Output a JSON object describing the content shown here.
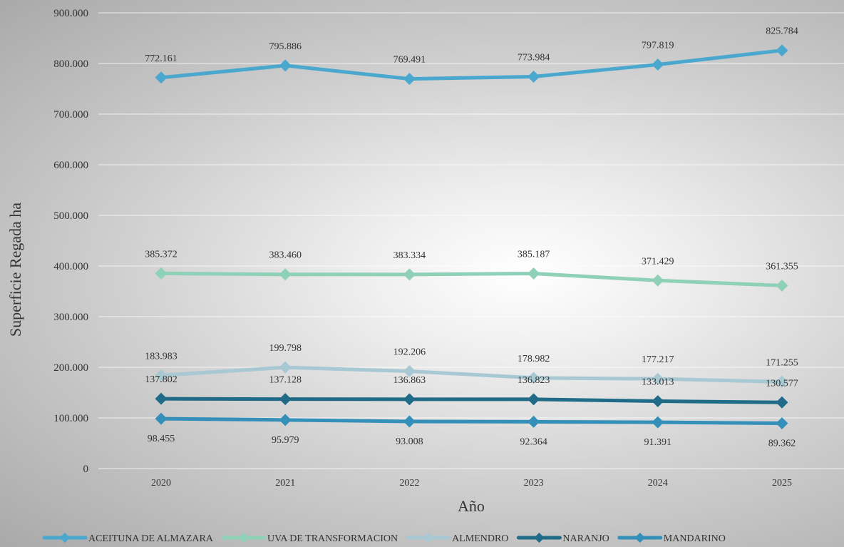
{
  "chart_data": {
    "type": "line",
    "title": "",
    "xlabel": "Año",
    "ylabel": "Superficie Regada ha",
    "x": [
      "2020",
      "2021",
      "2022",
      "2023",
      "2024",
      "2025"
    ],
    "ylim": [
      0,
      900000
    ],
    "yticks": [
      0,
      100000,
      200000,
      300000,
      400000,
      500000,
      600000,
      700000,
      800000,
      900000
    ],
    "ytick_labels": [
      "0",
      "100.000",
      "200.000",
      "300.000",
      "400.000",
      "500.000",
      "600.000",
      "700.000",
      "800.000",
      "900.000"
    ],
    "grid": true,
    "legend_position": "bottom",
    "series": [
      {
        "name": "ACEITUNA DE ALMAZARA",
        "color": "#4aa8cf",
        "values": [
          772161,
          795886,
          769491,
          773984,
          797819,
          825784
        ],
        "labels": [
          "772.161",
          "795.886",
          "769.491",
          "773.984",
          "797.819",
          "825.784"
        ],
        "label_pos": "above"
      },
      {
        "name": "UVA DE TRANSFORMACION",
        "color": "#8fd1b7",
        "values": [
          385372,
          383460,
          383334,
          385187,
          371429,
          361355
        ],
        "labels": [
          "385.372",
          "383.460",
          "383.334",
          "385.187",
          "371.429",
          "361.355"
        ],
        "label_pos": "above"
      },
      {
        "name": "ALMENDRO",
        "color": "#a8c8d3",
        "values": [
          183983,
          199798,
          192206,
          178982,
          177217,
          171255
        ],
        "labels": [
          "183.983",
          "199.798",
          "192.206",
          "178.982",
          "177.217",
          "171.255"
        ],
        "label_pos": "above"
      },
      {
        "name": "NARANJO",
        "color": "#1f6b88",
        "values": [
          137802,
          137128,
          136863,
          136823,
          133013,
          130577
        ],
        "labels": [
          "137.802",
          "137.128",
          "136.863",
          "136.823",
          "133.013",
          "130.577"
        ],
        "label_pos": "above"
      },
      {
        "name": "MANDARINO",
        "color": "#3490b8",
        "values": [
          98455,
          95979,
          93008,
          92364,
          91391,
          89362
        ],
        "labels": [
          "98.455",
          "95.979",
          "93.008",
          "92.364",
          "91.391",
          "89.362"
        ],
        "label_pos": "below"
      }
    ]
  }
}
